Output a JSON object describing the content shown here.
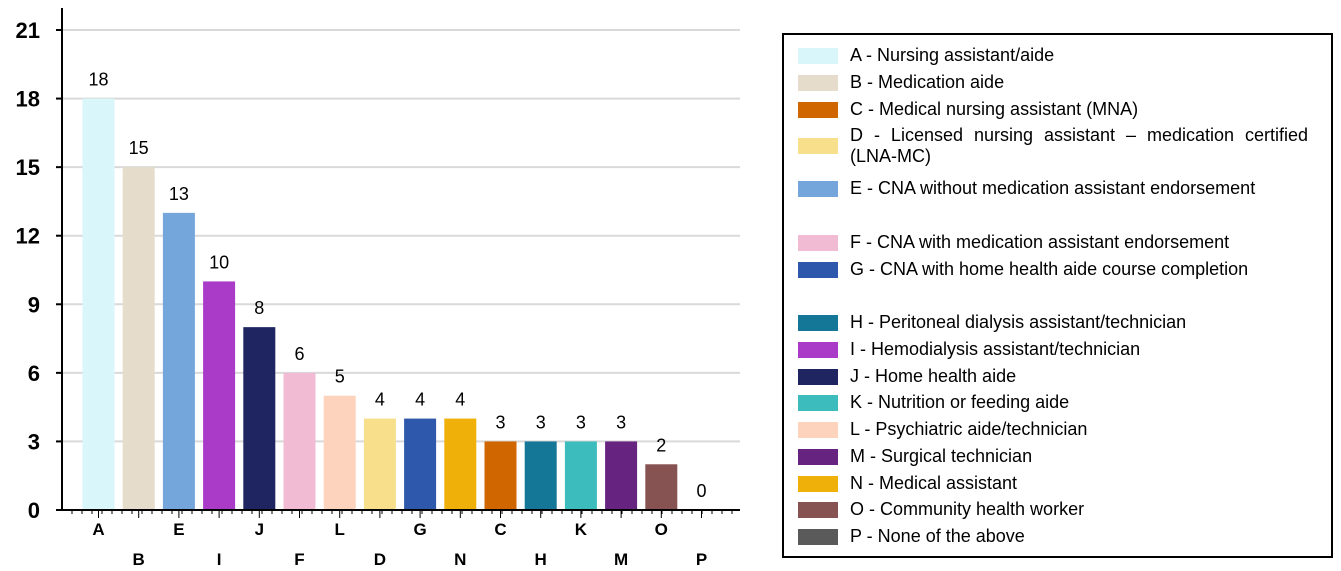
{
  "chart_data": {
    "type": "bar",
    "categories": [
      "A",
      "B",
      "E",
      "I",
      "J",
      "F",
      "L",
      "D",
      "G",
      "N",
      "C",
      "H",
      "K",
      "M",
      "O",
      "P"
    ],
    "values": [
      18,
      15,
      13,
      10,
      8,
      6,
      5,
      4,
      4,
      4,
      3,
      3,
      3,
      3,
      2,
      0
    ],
    "colors": [
      "#d9f6fb",
      "#e5dccb",
      "#74a6db",
      "#a93bc8",
      "#1e2560",
      "#f1bcd3",
      "#fdd3bd",
      "#f8df8c",
      "#2e58ab",
      "#f0b00a",
      "#cf6600",
      "#157797",
      "#3cbcbc",
      "#662380",
      "#875252",
      "#5a5a5a"
    ],
    "ylim": [
      0,
      21
    ],
    "yticks": [
      0,
      3,
      6,
      9,
      12,
      15,
      18,
      21
    ],
    "grid": true,
    "legend_position": "right",
    "legend": [
      {
        "label": "A - Nursing assistant/aide",
        "color": "#d9f6fb"
      },
      {
        "label": "B - Medication aide",
        "color": "#e5dccb"
      },
      {
        "label": "C - Medical nursing assistant (MNA)",
        "color": "#cf6600"
      },
      {
        "label": "D - Licensed nursing assistant – medication certified (LNA-MC)",
        "color": "#f8df8c"
      },
      {
        "label": "E - CNA without medication assistant endorsement",
        "color": "#74a6db"
      },
      {
        "label": "F - CNA with medication assistant endorsement",
        "color": "#f1bcd3"
      },
      {
        "label": "G - CNA with home health aide course completion",
        "color": "#2e58ab"
      },
      {
        "label": "H - Peritoneal dialysis assistant/technician",
        "color": "#157797"
      },
      {
        "label": "I - Hemodialysis assistant/technician",
        "color": "#a93bc8"
      },
      {
        "label": "J - Home health aide",
        "color": "#1e2560"
      },
      {
        "label": "K - Nutrition or feeding aide",
        "color": "#3cbcbc"
      },
      {
        "label": "L - Psychiatric aide/technician",
        "color": "#fdd3bd"
      },
      {
        "label": "M - Surgical technician",
        "color": "#662380"
      },
      {
        "label": "N - Medical assistant",
        "color": "#f0b00a"
      },
      {
        "label": "O - Community health worker",
        "color": "#875252"
      },
      {
        "label": "P - None of the above",
        "color": "#5a5a5a"
      }
    ]
  }
}
